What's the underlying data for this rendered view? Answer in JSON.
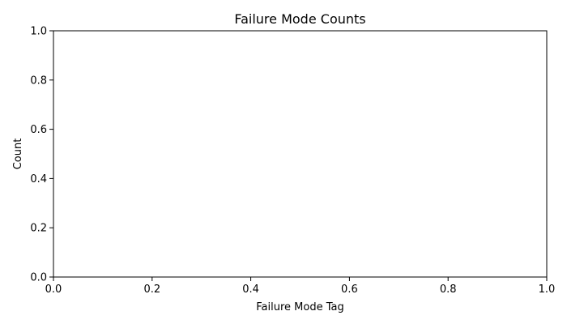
{
  "chart_data": {
    "type": "bar",
    "title": "Failure Mode Counts",
    "xlabel": "Failure Mode Tag",
    "ylabel": "Count",
    "categories": [],
    "values": [],
    "xlim": [
      0,
      1
    ],
    "ylim": [
      0,
      1
    ],
    "x_ticks": [
      "0.0",
      "0.2",
      "0.4",
      "0.6",
      "0.8",
      "1.0"
    ],
    "y_ticks": [
      "0.0",
      "0.2",
      "0.4",
      "0.6",
      "0.8",
      "1.0"
    ],
    "grid": false,
    "legend": "none"
  }
}
